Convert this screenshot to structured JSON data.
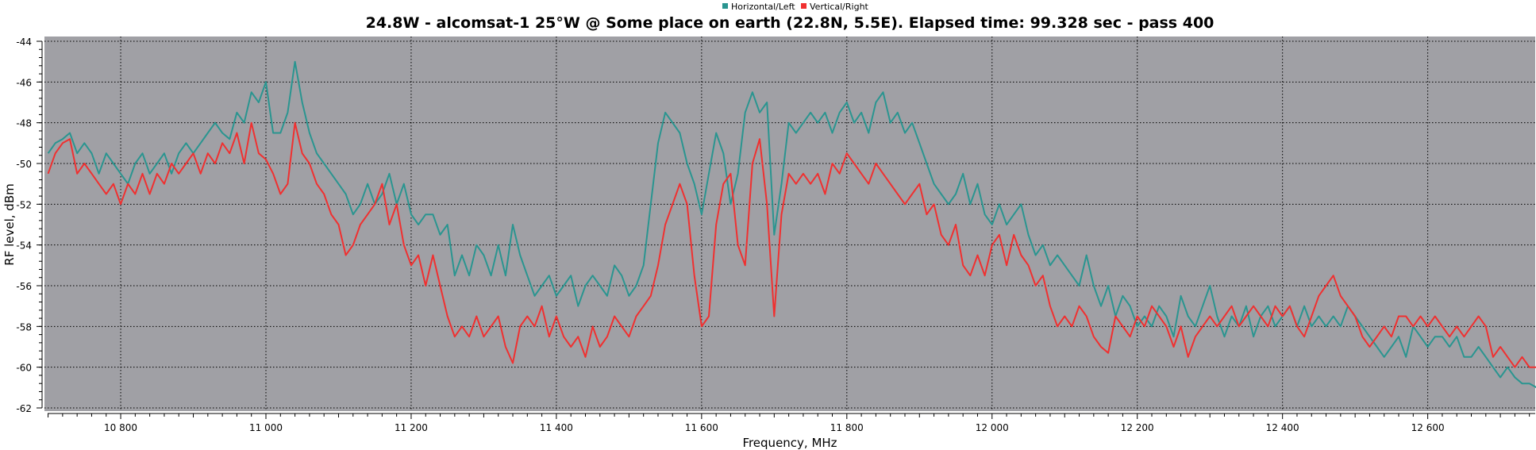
{
  "chart_data": {
    "type": "line",
    "title": "24.8W - alcomsat-1 25°W @ Some place on earth (22.8N, 5.5E). Elapsed time: 99.328 sec - pass 400",
    "xlabel": "Frequency, MHz",
    "ylabel": "RF level, dBm",
    "xlim": [
      10695,
      12748
    ],
    "ylim": [
      -62,
      -44
    ],
    "xticks": [
      10800,
      11000,
      11200,
      11400,
      11600,
      11800,
      12000,
      12200,
      12400,
      12600
    ],
    "xtick_labels": [
      "10 800",
      "11 000",
      "11 200",
      "11 400",
      "11 600",
      "11 800",
      "12 000",
      "12 200",
      "12 400",
      "12 600"
    ],
    "yticks": [
      -62,
      -60,
      -58,
      -56,
      -54,
      -52,
      -50,
      -48,
      -46,
      -44
    ],
    "ytick_labels": [
      "-62",
      "-60",
      "-58",
      "-56",
      "-54",
      "-52",
      "-50",
      "-48",
      "-46",
      "-44"
    ],
    "grid": true,
    "legend_placement": "top-center",
    "plot_background": "#a0a0a5",
    "x_start": 10700,
    "x_step": 10,
    "series": [
      {
        "name": "Horizontal/Left",
        "color": "#2a9590",
        "values": [
          -49.5,
          -49,
          -48.8,
          -48.5,
          -49.5,
          -49,
          -49.5,
          -50.5,
          -49.5,
          -50,
          -50.5,
          -51,
          -50,
          -49.5,
          -50.5,
          -50,
          -49.5,
          -50.5,
          -49.5,
          -49,
          -49.5,
          -49,
          -48.5,
          -48,
          -48.5,
          -48.8,
          -47.5,
          -48,
          -46.5,
          -47,
          -46,
          -48.5,
          -48.5,
          -47.5,
          -45,
          -47,
          -48.5,
          -49.5,
          -50,
          -50.5,
          -51,
          -51.5,
          -52.5,
          -52,
          -51,
          -52,
          -51.5,
          -50.5,
          -52,
          -51,
          -52.5,
          -53,
          -52.5,
          -52.5,
          -53.5,
          -53,
          -55.5,
          -54.5,
          -55.5,
          -54,
          -54.5,
          -55.5,
          -54,
          -55.5,
          -53,
          -54.5,
          -55.5,
          -56.5,
          -56,
          -55.5,
          -56.5,
          -56,
          -55.5,
          -57,
          -56,
          -55.5,
          -56,
          -56.5,
          -55,
          -55.5,
          -56.5,
          -56,
          -55,
          -52,
          -49,
          -47.5,
          -48,
          -48.5,
          -50,
          -51,
          -52.5,
          -50.5,
          -48.5,
          -49.5,
          -52,
          -50.5,
          -47.5,
          -46.5,
          -47.5,
          -47,
          -53.5,
          -51,
          -48,
          -48.5,
          -48,
          -47.5,
          -48,
          -47.5,
          -48.5,
          -47.5,
          -47,
          -48,
          -47.5,
          -48.5,
          -47,
          -46.5,
          -48,
          -47.5,
          -48.5,
          -48,
          -49,
          -50,
          -51,
          -51.5,
          -52,
          -51.5,
          -50.5,
          -52,
          -51,
          -52.5,
          -53,
          -52,
          -53,
          -52.5,
          -52,
          -53.5,
          -54.5,
          -54,
          -55,
          -54.5,
          -55,
          -55.5,
          -56,
          -54.5,
          -56,
          -57,
          -56,
          -57.5,
          -56.5,
          -57,
          -58,
          -57.5,
          -58,
          -57,
          -57.5,
          -58.5,
          -56.5,
          -57.5,
          -58,
          -57,
          -56,
          -57.5,
          -58.5,
          -57.5,
          -58,
          -57,
          -58.5,
          -57.5,
          -57,
          -58,
          -57.5,
          -57,
          -58,
          -57,
          -58,
          -57.5,
          -58,
          -57.5,
          -58,
          -57,
          -57.5,
          -58,
          -58.5,
          -59,
          -59.5,
          -59,
          -58.5,
          -59.5,
          -58,
          -58.5,
          -59,
          -58.5,
          -58.5,
          -59,
          -58.5,
          -59.5,
          -59.5,
          -59,
          -59.5,
          -60,
          -60.5,
          -60,
          -60.5,
          -60.8,
          -60.8,
          -61
        ]
      },
      {
        "name": "Vertical/Right",
        "color": "#f03030",
        "values": [
          -50.5,
          -49.5,
          -49,
          -48.8,
          -50.5,
          -50,
          -50.5,
          -51,
          -51.5,
          -51,
          -52,
          -51,
          -51.5,
          -50.5,
          -51.5,
          -50.5,
          -51,
          -50,
          -50.5,
          -50,
          -49.5,
          -50.5,
          -49.5,
          -50,
          -49,
          -49.5,
          -48.5,
          -50,
          -48,
          -49.5,
          -49.8,
          -50.5,
          -51.5,
          -51,
          -48,
          -49.5,
          -50,
          -51,
          -51.5,
          -52.5,
          -53,
          -54.5,
          -54,
          -53,
          -52.5,
          -52,
          -51,
          -53,
          -52,
          -54,
          -55,
          -54.5,
          -56,
          -54.5,
          -56,
          -57.5,
          -58.5,
          -58,
          -58.5,
          -57.5,
          -58.5,
          -58,
          -57.5,
          -59,
          -59.8,
          -58,
          -57.5,
          -58,
          -57,
          -58.5,
          -57.5,
          -58.5,
          -59,
          -58.5,
          -59.5,
          -58,
          -59,
          -58.5,
          -57.5,
          -58,
          -58.5,
          -57.5,
          -57,
          -56.5,
          -55,
          -53,
          -52,
          -51,
          -52,
          -55.5,
          -58,
          -57.5,
          -53,
          -51,
          -50.5,
          -54,
          -55,
          -50,
          -48.8,
          -52,
          -57.5,
          -52.5,
          -50.5,
          -51,
          -50.5,
          -51,
          -50.5,
          -51.5,
          -50,
          -50.5,
          -49.5,
          -50,
          -50.5,
          -51,
          -50,
          -50.5,
          -51,
          -51.5,
          -52,
          -51.5,
          -51,
          -52.5,
          -52,
          -53.5,
          -54,
          -53,
          -55,
          -55.5,
          -54.5,
          -55.5,
          -54,
          -53.5,
          -55,
          -53.5,
          -54.5,
          -55,
          -56,
          -55.5,
          -57,
          -58,
          -57.5,
          -58,
          -57,
          -57.5,
          -58.5,
          -59,
          -59.3,
          -57.5,
          -58,
          -58.5,
          -57.5,
          -58,
          -57,
          -57.5,
          -58,
          -59,
          -58,
          -59.5,
          -58.5,
          -58,
          -57.5,
          -58,
          -57.5,
          -57,
          -58,
          -57.5,
          -57,
          -57.5,
          -58,
          -57,
          -57.5,
          -57,
          -58,
          -58.5,
          -57.5,
          -56.5,
          -56,
          -55.5,
          -56.5,
          -57,
          -57.5,
          -58.5,
          -59,
          -58.5,
          -58,
          -58.5,
          -57.5,
          -57.5,
          -58,
          -57.5,
          -58,
          -57.5,
          -58,
          -58.5,
          -58,
          -58.5,
          -58,
          -57.5,
          -58,
          -59.5,
          -59,
          -59.5,
          -60,
          -59.5,
          -60,
          -60
        ]
      }
    ]
  }
}
